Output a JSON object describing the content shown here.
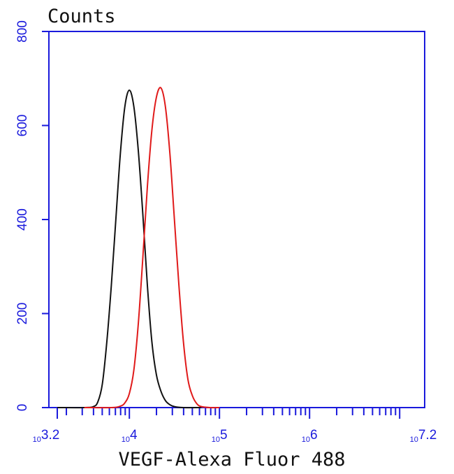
{
  "chart_data": {
    "type": "line",
    "ylabel": "Counts",
    "xlabel": "VEGF-Alexa Fluor 488",
    "x_scale": "log10",
    "xlim_exponent": [
      3.2,
      7.2
    ],
    "ylim": [
      0,
      800
    ],
    "y_ticks": [
      "0",
      "200",
      "400",
      "600",
      "800"
    ],
    "x_tick_labels": [
      {
        "base": "10",
        "exp": "3.2",
        "value_exponent": 3.2
      },
      {
        "base": "10",
        "exp": "4",
        "value_exponent": 4
      },
      {
        "base": "10",
        "exp": "5",
        "value_exponent": 5
      },
      {
        "base": "10",
        "exp": "6",
        "value_exponent": 6
      },
      {
        "base": "10",
        "exp": "7.2",
        "value_exponent": 7.2
      }
    ],
    "axis_color": "#1a1adc",
    "grid": false,
    "series": [
      {
        "color": "#111111",
        "points": [
          [
            3.2,
            0
          ],
          [
            3.5,
            0
          ],
          [
            3.6,
            2
          ],
          [
            3.65,
            12
          ],
          [
            3.7,
            50
          ],
          [
            3.75,
            140
          ],
          [
            3.8,
            260
          ],
          [
            3.85,
            400
          ],
          [
            3.9,
            540
          ],
          [
            3.95,
            640
          ],
          [
            4.0,
            675
          ],
          [
            4.05,
            640
          ],
          [
            4.1,
            545
          ],
          [
            4.15,
            410
          ],
          [
            4.2,
            260
          ],
          [
            4.25,
            140
          ],
          [
            4.3,
            70
          ],
          [
            4.35,
            35
          ],
          [
            4.4,
            15
          ],
          [
            4.45,
            6
          ],
          [
            4.5,
            2
          ],
          [
            4.6,
            0
          ],
          [
            4.8,
            0
          ]
        ]
      },
      {
        "color": "#e01a1a",
        "points": [
          [
            3.5,
            0
          ],
          [
            3.8,
            0
          ],
          [
            3.9,
            3
          ],
          [
            3.95,
            10
          ],
          [
            4.0,
            30
          ],
          [
            4.05,
            80
          ],
          [
            4.1,
            180
          ],
          [
            4.15,
            320
          ],
          [
            4.2,
            470
          ],
          [
            4.25,
            590
          ],
          [
            4.3,
            660
          ],
          [
            4.35,
            680
          ],
          [
            4.4,
            640
          ],
          [
            4.45,
            540
          ],
          [
            4.5,
            400
          ],
          [
            4.55,
            260
          ],
          [
            4.6,
            140
          ],
          [
            4.65,
            60
          ],
          [
            4.7,
            25
          ],
          [
            4.75,
            8
          ],
          [
            4.8,
            2
          ],
          [
            4.9,
            0
          ],
          [
            5.0,
            0
          ]
        ]
      }
    ]
  }
}
